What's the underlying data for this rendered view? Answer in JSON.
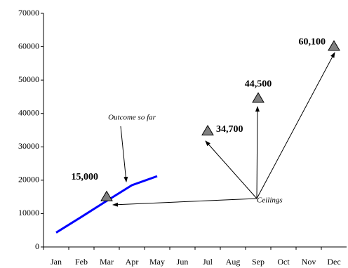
{
  "chart_data": {
    "type": "line",
    "categories": [
      "Jan",
      "Feb",
      "Mar",
      "Apr",
      "May",
      "Jun",
      "Jul",
      "Aug",
      "Sep",
      "Oct",
      "Nov",
      "Dec"
    ],
    "series": [
      {
        "color": "#0000ff",
        "values": [
          4300,
          9000,
          13800,
          18500,
          21200,
          null,
          null,
          null,
          null,
          null,
          null,
          null
        ]
      },
      {
        "color": "#808080",
        "marker": "triangle",
        "values": [
          null,
          null,
          15000,
          null,
          null,
          null,
          34700,
          null,
          44500,
          null,
          null,
          60100
        ],
        "value_labels": [
          null,
          null,
          "15,000",
          null,
          null,
          null,
          "34,700",
          null,
          "44,500",
          null,
          null,
          "60,100"
        ]
      }
    ],
    "annotations": [
      "Outcome so far",
      "Ceilings"
    ],
    "ylim": [
      0,
      70000
    ],
    "yticks": [
      0,
      10000,
      20000,
      30000,
      40000,
      50000,
      60000,
      70000
    ],
    "grid": false
  }
}
